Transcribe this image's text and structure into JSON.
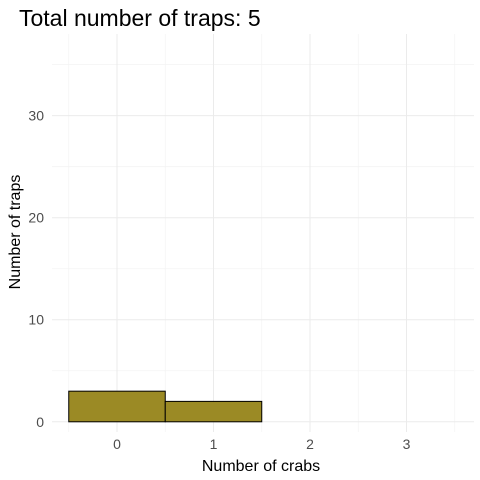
{
  "chart_data": {
    "type": "bar",
    "title": "Total number of traps: 5",
    "xlabel": "Number of crabs",
    "ylabel": "Number of traps",
    "categories": [
      "0",
      "1",
      "2",
      "3"
    ],
    "values": [
      3,
      2,
      0,
      0
    ],
    "ylim": [
      -1,
      38
    ],
    "yticks": [
      0,
      10,
      20,
      30
    ],
    "grid": true,
    "legend": "none",
    "bar_color": "#9b8a25",
    "bar_outline": "#000000",
    "background": "#ffffff"
  }
}
